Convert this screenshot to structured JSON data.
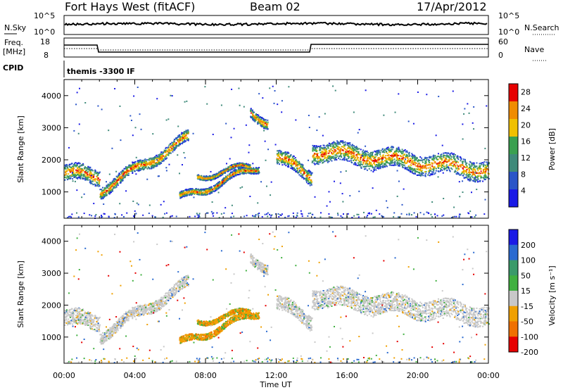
{
  "header": {
    "station": "Fort Hays West (fitACF)",
    "beam": "Beam 02",
    "date": "17/Apr/2012"
  },
  "noise_panel": {
    "left_label": "N.Sky",
    "right_label": "N.Search",
    "left_ticks": [
      "10^5",
      "10^0"
    ],
    "right_ticks": [
      "10^5",
      "10^0"
    ]
  },
  "freq_panel": {
    "left_label_1": "Freq.",
    "left_label_2": "[MHz]",
    "right_label": "Nave",
    "left_ticks": [
      "18",
      "8"
    ],
    "right_ticks": [
      "60",
      "0"
    ]
  },
  "cpid": {
    "label": "CPID",
    "value": "themis -3300 IF"
  },
  "chart_data": [
    {
      "type": "heatmap",
      "title": "",
      "xlabel": "Time UT",
      "ylabel": "Slant Range [km]",
      "x_ticks": [
        "00:00",
        "04:00",
        "08:00",
        "12:00",
        "16:00",
        "20:00",
        "00:00"
      ],
      "y_ticks": [
        1000,
        2000,
        3000,
        4000
      ],
      "xlim": [
        0,
        24
      ],
      "ylim": [
        180,
        4500
      ],
      "colorbar": {
        "label": "Power [dB]",
        "ticks": [
          4,
          8,
          12,
          16,
          20,
          24,
          28
        ],
        "range": [
          0,
          30
        ],
        "colors": [
          "#1a1ae6",
          "#2a55c8",
          "#3f8a7a",
          "#3aa050",
          "#f0c000",
          "#f08c00",
          "#e60000"
        ]
      }
    },
    {
      "type": "heatmap",
      "title": "",
      "xlabel": "Time UT",
      "ylabel": "Slant Range [km]",
      "x_ticks": [
        "00:00",
        "04:00",
        "08:00",
        "12:00",
        "16:00",
        "20:00",
        "00:00"
      ],
      "y_ticks": [
        1000,
        2000,
        3000,
        4000
      ],
      "xlim": [
        0,
        24
      ],
      "ylim": [
        180,
        4500
      ],
      "colorbar": {
        "label": "Velocity [m s⁻¹]",
        "ticks": [
          200,
          100,
          50,
          15,
          -15,
          -50,
          -100,
          -200
        ],
        "colors": [
          "#1a1ae6",
          "#2a6ad0",
          "#3a9a6a",
          "#40b040",
          "#c8c8c8",
          "#f0a000",
          "#f07000",
          "#e60000"
        ]
      }
    }
  ]
}
